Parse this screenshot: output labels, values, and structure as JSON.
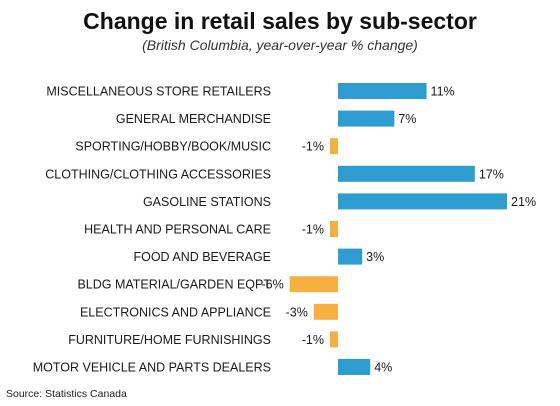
{
  "chart_data": {
    "type": "bar",
    "orientation": "horizontal",
    "title": "Change in retail sales by sub-sector",
    "subtitle": "(British Columbia, year-over-year % change)",
    "categories": [
      "MISCELLANEOUS STORE RETAILERS",
      "GENERAL MERCHANDISE",
      "SPORTING/HOBBY/BOOK/MUSIC",
      "CLOTHING/CLOTHING ACCESSORIES",
      "GASOLINE STATIONS",
      "HEALTH AND PERSONAL CARE",
      "FOOD AND BEVERAGE",
      "BLDG MATERIAL/GARDEN EQPT",
      "ELECTRONICS AND APPLIANCE",
      "FURNITURE/HOME FURNISHINGS",
      "MOTOR VEHICLE AND PARTS DEALERS"
    ],
    "values": [
      11,
      7,
      -1,
      17,
      21,
      -1,
      3,
      -6,
      -3,
      -1,
      4
    ],
    "value_labels": [
      "11%",
      "7%",
      "-1%",
      "17%",
      "21%",
      "-1%",
      "3%",
      "-6%",
      "-3%",
      "-1%",
      "4%"
    ],
    "positive_color": "#2e9bd1",
    "negative_color": "#f5b041",
    "xlim": [
      -6,
      21
    ],
    "grid": false,
    "legend": "none"
  },
  "source": "Source: Statistics Canada"
}
